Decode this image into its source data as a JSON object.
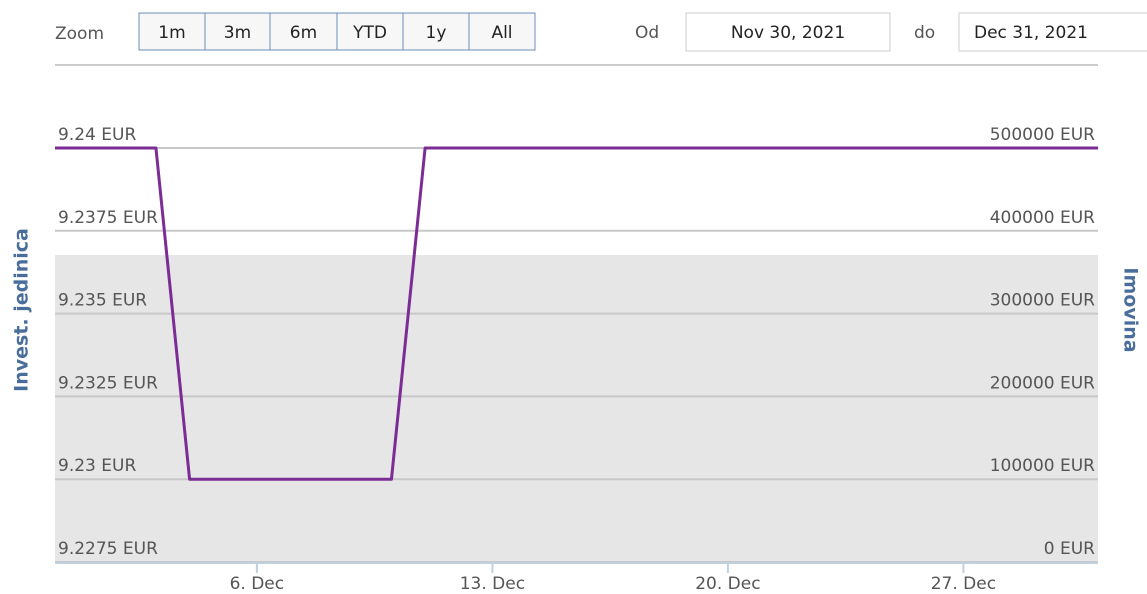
{
  "range_selector": {
    "zoom_label": "Zoom",
    "buttons": [
      "1m",
      "3m",
      "6m",
      "YTD",
      "1y",
      "All"
    ],
    "from_label": "Od",
    "to_label": "do"
  },
  "chart_data": {
    "type": "line",
    "y_axis_label": "Invest. jedinica",
    "y2_axis_label": "Imovina",
    "x": [
      "Nov 30, 2021",
      "Dec 3, 2021",
      "Dec 4, 2021",
      "Dec 10, 2021",
      "Dec 11, 2021",
      "Dec 31, 2021"
    ],
    "series": [
      {
        "color": "#7b2c95",
        "values": [
          9.24,
          9.24,
          9.23,
          9.23,
          9.24,
          9.24
        ]
      }
    ],
    "xlim": [
      "Nov 30, 2021",
      "Dec 31, 2021"
    ],
    "xticks": [
      {
        "value": "Dec 6, 2021",
        "label": "6. Dec"
      },
      {
        "value": "Dec 13, 2021",
        "label": "13. Dec"
      },
      {
        "value": "Dec 20, 2021",
        "label": "20. Dec"
      },
      {
        "value": "Dec 27, 2021",
        "label": "27. Dec"
      }
    ],
    "ylim": [
      9.2275,
      9.24
    ],
    "yticks": [
      {
        "value": 9.2275,
        "label": "9.2275 EUR"
      },
      {
        "value": 9.23,
        "label": "9.23 EUR"
      },
      {
        "value": 9.2325,
        "label": "9.2325 EUR"
      },
      {
        "value": 9.235,
        "label": "9.235 EUR"
      },
      {
        "value": 9.2375,
        "label": "9.2375 EUR"
      },
      {
        "value": 9.24,
        "label": "9.24 EUR"
      }
    ],
    "y2lim": [
      0,
      500000
    ],
    "y2ticks": [
      {
        "value": 0,
        "label": "0 EUR"
      },
      {
        "value": 100000,
        "label": "100000 EUR"
      },
      {
        "value": 200000,
        "label": "200000 EUR"
      },
      {
        "value": 300000,
        "label": "300000 EUR"
      },
      {
        "value": 400000,
        "label": "400000 EUR"
      },
      {
        "value": 500000,
        "label": "500000 EUR"
      }
    ],
    "grid": true
  }
}
